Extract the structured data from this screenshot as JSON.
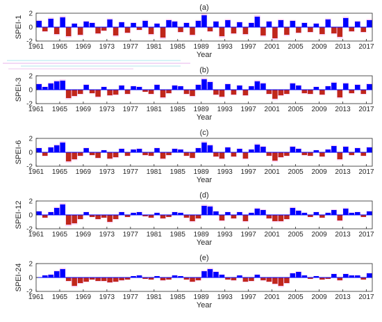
{
  "colors": {
    "positive": "#0000ff",
    "negative": "#c0271b",
    "envelope": "#f3a8ef",
    "axis": "#262626"
  },
  "chart_data": [
    {
      "type": "bar",
      "panel_label": "(a)",
      "ylabel": "SPEI-1",
      "xlabel": "Year",
      "xlim": [
        1961,
        2018
      ],
      "ylim": [
        -2,
        2
      ],
      "yticks": [
        -2,
        0,
        2
      ],
      "xticks": [
        1961,
        1965,
        1969,
        1973,
        1977,
        1981,
        1985,
        1989,
        1993,
        1997,
        2001,
        2005,
        2009,
        2013,
        2017
      ],
      "x": [
        1961,
        1962,
        1963,
        1964,
        1965,
        1966,
        1967,
        1968,
        1969,
        1970,
        1971,
        1972,
        1973,
        1974,
        1975,
        1976,
        1977,
        1978,
        1979,
        1980,
        1981,
        1982,
        1983,
        1984,
        1985,
        1986,
        1987,
        1988,
        1989,
        1990,
        1991,
        1992,
        1993,
        1994,
        1995,
        1996,
        1997,
        1998,
        1999,
        2000,
        2001,
        2002,
        2003,
        2004,
        2005,
        2006,
        2007,
        2008,
        2009,
        2010,
        2011,
        2012,
        2013,
        2014,
        2015,
        2016,
        2017
      ],
      "values": [
        0.9,
        -0.6,
        1.2,
        -1.0,
        1.4,
        -1.3,
        0.5,
        -1.1,
        0.8,
        0.6,
        -0.9,
        -0.5,
        1.1,
        -1.2,
        0.7,
        -0.8,
        0.6,
        -0.4,
        0.9,
        -1.0,
        0.5,
        -1.5,
        1.0,
        0.8,
        -0.7,
        0.6,
        -1.1,
        0.9,
        1.7,
        -0.6,
        0.8,
        -1.3,
        1.0,
        -0.9,
        0.7,
        -1.0,
        0.6,
        1.5,
        -1.2,
        0.8,
        -1.6,
        1.0,
        -1.1,
        0.9,
        -0.8,
        0.6,
        -0.7,
        0.5,
        -1.0,
        1.1,
        -0.9,
        -1.4,
        1.3,
        -0.6,
        0.8,
        -0.7,
        1.0
      ]
    },
    {
      "type": "bar",
      "panel_label": "(b)",
      "ylabel": "SPEI-3",
      "xlabel": "Year",
      "xlim": [
        1961,
        2018
      ],
      "ylim": [
        -2,
        2
      ],
      "yticks": [
        -2,
        0,
        2
      ],
      "xticks": [
        1961,
        1965,
        1969,
        1973,
        1977,
        1981,
        1985,
        1989,
        1993,
        1997,
        2001,
        2005,
        2009,
        2013,
        2017
      ],
      "x": [
        1961,
        1962,
        1963,
        1964,
        1965,
        1966,
        1967,
        1968,
        1969,
        1970,
        1971,
        1972,
        1973,
        1974,
        1975,
        1976,
        1977,
        1978,
        1979,
        1980,
        1981,
        1982,
        1983,
        1984,
        1985,
        1986,
        1987,
        1988,
        1989,
        1990,
        1991,
        1992,
        1993,
        1994,
        1995,
        1996,
        1997,
        1998,
        1999,
        2000,
        2001,
        2002,
        2003,
        2004,
        2005,
        2006,
        2007,
        2008,
        2009,
        2010,
        2011,
        2012,
        2013,
        2014,
        2015,
        2016,
        2017
      ],
      "values": [
        0.8,
        0.4,
        0.9,
        1.2,
        1.3,
        -1.2,
        -0.9,
        -0.6,
        0.7,
        -0.5,
        -1.0,
        0.4,
        -0.8,
        -0.7,
        0.6,
        -0.6,
        0.5,
        0.4,
        -0.3,
        -0.6,
        0.7,
        -1.1,
        -0.5,
        0.6,
        0.5,
        -0.6,
        -0.9,
        0.7,
        1.5,
        1.1,
        -0.7,
        -1.0,
        0.8,
        -0.7,
        0.6,
        -0.8,
        0.5,
        1.2,
        0.9,
        -0.6,
        -1.3,
        -0.8,
        -0.6,
        0.9,
        0.6,
        -0.5,
        -0.6,
        0.4,
        -0.7,
        0.5,
        1.0,
        -1.1,
        0.9,
        -0.5,
        0.7,
        -0.6,
        0.8
      ]
    },
    {
      "type": "bar",
      "panel_label": "(c)",
      "ylabel": "SPEI-6",
      "xlabel": "Year",
      "xlim": [
        1961,
        2018
      ],
      "ylim": [
        -2,
        2
      ],
      "yticks": [
        -2,
        0,
        2
      ],
      "xticks": [
        1961,
        1965,
        1969,
        1973,
        1977,
        1981,
        1985,
        1989,
        1993,
        1997,
        2001,
        2005,
        2009,
        2013,
        2017
      ],
      "x": [
        1961,
        1962,
        1963,
        1964,
        1965,
        1966,
        1967,
        1968,
        1969,
        1970,
        1971,
        1972,
        1973,
        1974,
        1975,
        1976,
        1977,
        1978,
        1979,
        1980,
        1981,
        1982,
        1983,
        1984,
        1985,
        1986,
        1987,
        1988,
        1989,
        1990,
        1991,
        1992,
        1993,
        1994,
        1995,
        1996,
        1997,
        1998,
        1999,
        2000,
        2001,
        2002,
        2003,
        2004,
        2005,
        2006,
        2007,
        2008,
        2009,
        2010,
        2011,
        2012,
        2013,
        2014,
        2015,
        2016,
        2017
      ],
      "values": [
        0.6,
        -0.5,
        0.7,
        1.0,
        1.4,
        -1.3,
        -1.0,
        -0.5,
        0.6,
        -0.4,
        -0.8,
        0.3,
        -0.9,
        -0.7,
        0.5,
        -0.5,
        0.4,
        0.5,
        -0.4,
        -0.5,
        0.6,
        -0.9,
        -0.4,
        0.5,
        0.4,
        -0.5,
        -0.8,
        0.6,
        1.4,
        1.0,
        -0.6,
        -0.9,
        0.7,
        -0.6,
        0.5,
        -0.9,
        0.4,
        1.1,
        0.8,
        -0.5,
        -1.2,
        -0.7,
        -0.5,
        0.8,
        0.5,
        -0.4,
        -0.5,
        0.3,
        -0.6,
        0.4,
        0.9,
        -1.0,
        0.8,
        -0.4,
        0.6,
        -0.5,
        0.7
      ]
    },
    {
      "type": "bar",
      "panel_label": "(d)",
      "ylabel": "SPEI-12",
      "xlabel": "Year",
      "xlim": [
        1961,
        2018
      ],
      "ylim": [
        -2,
        2
      ],
      "yticks": [
        -2,
        0,
        2
      ],
      "xticks": [
        1961,
        1965,
        1969,
        1973,
        1977,
        1981,
        1985,
        1989,
        1993,
        1997,
        2001,
        2005,
        2009,
        2013,
        2017
      ],
      "x": [
        1961,
        1962,
        1963,
        1964,
        1965,
        1966,
        1967,
        1968,
        1969,
        1970,
        1971,
        1972,
        1973,
        1974,
        1975,
        1976,
        1977,
        1978,
        1979,
        1980,
        1981,
        1982,
        1983,
        1984,
        1985,
        1986,
        1987,
        1988,
        1989,
        1990,
        1991,
        1992,
        1993,
        1994,
        1995,
        1996,
        1997,
        1998,
        1999,
        2000,
        2001,
        2002,
        2003,
        2004,
        2005,
        2006,
        2007,
        2008,
        2009,
        2010,
        2011,
        2012,
        2013,
        2014,
        2015,
        2016,
        2017
      ],
      "values": [
        0.5,
        -0.4,
        0.4,
        1.0,
        1.5,
        -1.4,
        -1.2,
        -0.6,
        0.4,
        -0.3,
        -0.6,
        -0.4,
        -1.0,
        -0.6,
        0.4,
        -0.3,
        0.3,
        0.4,
        -0.2,
        -0.4,
        0.3,
        -0.5,
        -0.3,
        0.4,
        0.3,
        -0.4,
        -0.9,
        -0.5,
        1.3,
        1.2,
        0.5,
        -0.8,
        0.4,
        -0.5,
        0.4,
        -0.9,
        0.3,
        0.9,
        0.7,
        -0.5,
        -0.9,
        -0.9,
        -0.6,
        1.0,
        0.6,
        0.3,
        -0.3,
        0.4,
        -0.4,
        0.3,
        0.7,
        -0.8,
        0.9,
        0.3,
        0.4,
        -0.3,
        0.5
      ]
    },
    {
      "type": "bar",
      "panel_label": "(e)",
      "ylabel": "SPEI-24",
      "xlabel": "Year",
      "xlim": [
        1961,
        2018
      ],
      "ylim": [
        -2,
        2
      ],
      "yticks": [
        -2,
        0,
        2
      ],
      "xticks": [
        1961,
        1965,
        1969,
        1973,
        1977,
        1981,
        1985,
        1989,
        1993,
        1997,
        2001,
        2005,
        2009,
        2013,
        2017
      ],
      "x": [
        1961,
        1962,
        1963,
        1964,
        1965,
        1966,
        1967,
        1968,
        1969,
        1970,
        1971,
        1972,
        1973,
        1974,
        1975,
        1976,
        1977,
        1978,
        1979,
        1980,
        1981,
        1982,
        1983,
        1984,
        1985,
        1986,
        1987,
        1988,
        1989,
        1990,
        1991,
        1992,
        1993,
        1994,
        1995,
        1996,
        1997,
        1998,
        1999,
        2000,
        2001,
        2002,
        2003,
        2004,
        2005,
        2006,
        2007,
        2008,
        2009,
        2010,
        2011,
        2012,
        2013,
        2014,
        2015,
        2016,
        2017
      ],
      "values": [
        0.0,
        0.3,
        0.4,
        0.9,
        1.2,
        -0.5,
        -1.2,
        -0.8,
        -0.6,
        -0.3,
        -0.5,
        -0.5,
        -0.7,
        -0.6,
        -0.4,
        -0.3,
        0.2,
        0.3,
        -0.2,
        -0.3,
        0.2,
        -0.4,
        -0.3,
        0.3,
        0.2,
        -0.3,
        -0.6,
        -0.4,
        0.9,
        1.2,
        0.8,
        0.4,
        -0.3,
        -0.4,
        0.3,
        -0.6,
        -0.5,
        0.4,
        -0.4,
        -0.6,
        -0.9,
        -1.2,
        -0.8,
        0.6,
        0.8,
        0.3,
        -0.2,
        0.2,
        -0.3,
        -0.2,
        0.5,
        -0.4,
        0.5,
        0.3,
        0.3,
        -0.3,
        0.6
      ]
    }
  ]
}
